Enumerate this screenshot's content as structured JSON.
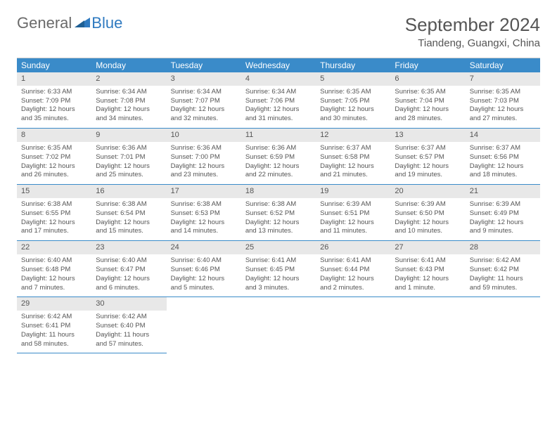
{
  "logo": {
    "text1": "General",
    "text2": "Blue"
  },
  "header": {
    "month": "September 2024",
    "location": "Tiandeng, Guangxi, China"
  },
  "colors": {
    "header_bg": "#3a8bc9",
    "header_fg": "#ffffff",
    "daynum_bg": "#e8e8e8",
    "text": "#555555",
    "border": "#3a8bc9",
    "logo_blue": "#2f7ac0"
  },
  "dayNames": [
    "Sunday",
    "Monday",
    "Tuesday",
    "Wednesday",
    "Thursday",
    "Friday",
    "Saturday"
  ],
  "days": [
    {
      "n": "1",
      "sunrise": "Sunrise: 6:33 AM",
      "sunset": "Sunset: 7:09 PM",
      "dl1": "Daylight: 12 hours",
      "dl2": "and 35 minutes."
    },
    {
      "n": "2",
      "sunrise": "Sunrise: 6:34 AM",
      "sunset": "Sunset: 7:08 PM",
      "dl1": "Daylight: 12 hours",
      "dl2": "and 34 minutes."
    },
    {
      "n": "3",
      "sunrise": "Sunrise: 6:34 AM",
      "sunset": "Sunset: 7:07 PM",
      "dl1": "Daylight: 12 hours",
      "dl2": "and 32 minutes."
    },
    {
      "n": "4",
      "sunrise": "Sunrise: 6:34 AM",
      "sunset": "Sunset: 7:06 PM",
      "dl1": "Daylight: 12 hours",
      "dl2": "and 31 minutes."
    },
    {
      "n": "5",
      "sunrise": "Sunrise: 6:35 AM",
      "sunset": "Sunset: 7:05 PM",
      "dl1": "Daylight: 12 hours",
      "dl2": "and 30 minutes."
    },
    {
      "n": "6",
      "sunrise": "Sunrise: 6:35 AM",
      "sunset": "Sunset: 7:04 PM",
      "dl1": "Daylight: 12 hours",
      "dl2": "and 28 minutes."
    },
    {
      "n": "7",
      "sunrise": "Sunrise: 6:35 AM",
      "sunset": "Sunset: 7:03 PM",
      "dl1": "Daylight: 12 hours",
      "dl2": "and 27 minutes."
    },
    {
      "n": "8",
      "sunrise": "Sunrise: 6:35 AM",
      "sunset": "Sunset: 7:02 PM",
      "dl1": "Daylight: 12 hours",
      "dl2": "and 26 minutes."
    },
    {
      "n": "9",
      "sunrise": "Sunrise: 6:36 AM",
      "sunset": "Sunset: 7:01 PM",
      "dl1": "Daylight: 12 hours",
      "dl2": "and 25 minutes."
    },
    {
      "n": "10",
      "sunrise": "Sunrise: 6:36 AM",
      "sunset": "Sunset: 7:00 PM",
      "dl1": "Daylight: 12 hours",
      "dl2": "and 23 minutes."
    },
    {
      "n": "11",
      "sunrise": "Sunrise: 6:36 AM",
      "sunset": "Sunset: 6:59 PM",
      "dl1": "Daylight: 12 hours",
      "dl2": "and 22 minutes."
    },
    {
      "n": "12",
      "sunrise": "Sunrise: 6:37 AM",
      "sunset": "Sunset: 6:58 PM",
      "dl1": "Daylight: 12 hours",
      "dl2": "and 21 minutes."
    },
    {
      "n": "13",
      "sunrise": "Sunrise: 6:37 AM",
      "sunset": "Sunset: 6:57 PM",
      "dl1": "Daylight: 12 hours",
      "dl2": "and 19 minutes."
    },
    {
      "n": "14",
      "sunrise": "Sunrise: 6:37 AM",
      "sunset": "Sunset: 6:56 PM",
      "dl1": "Daylight: 12 hours",
      "dl2": "and 18 minutes."
    },
    {
      "n": "15",
      "sunrise": "Sunrise: 6:38 AM",
      "sunset": "Sunset: 6:55 PM",
      "dl1": "Daylight: 12 hours",
      "dl2": "and 17 minutes."
    },
    {
      "n": "16",
      "sunrise": "Sunrise: 6:38 AM",
      "sunset": "Sunset: 6:54 PM",
      "dl1": "Daylight: 12 hours",
      "dl2": "and 15 minutes."
    },
    {
      "n": "17",
      "sunrise": "Sunrise: 6:38 AM",
      "sunset": "Sunset: 6:53 PM",
      "dl1": "Daylight: 12 hours",
      "dl2": "and 14 minutes."
    },
    {
      "n": "18",
      "sunrise": "Sunrise: 6:38 AM",
      "sunset": "Sunset: 6:52 PM",
      "dl1": "Daylight: 12 hours",
      "dl2": "and 13 minutes."
    },
    {
      "n": "19",
      "sunrise": "Sunrise: 6:39 AM",
      "sunset": "Sunset: 6:51 PM",
      "dl1": "Daylight: 12 hours",
      "dl2": "and 11 minutes."
    },
    {
      "n": "20",
      "sunrise": "Sunrise: 6:39 AM",
      "sunset": "Sunset: 6:50 PM",
      "dl1": "Daylight: 12 hours",
      "dl2": "and 10 minutes."
    },
    {
      "n": "21",
      "sunrise": "Sunrise: 6:39 AM",
      "sunset": "Sunset: 6:49 PM",
      "dl1": "Daylight: 12 hours",
      "dl2": "and 9 minutes."
    },
    {
      "n": "22",
      "sunrise": "Sunrise: 6:40 AM",
      "sunset": "Sunset: 6:48 PM",
      "dl1": "Daylight: 12 hours",
      "dl2": "and 7 minutes."
    },
    {
      "n": "23",
      "sunrise": "Sunrise: 6:40 AM",
      "sunset": "Sunset: 6:47 PM",
      "dl1": "Daylight: 12 hours",
      "dl2": "and 6 minutes."
    },
    {
      "n": "24",
      "sunrise": "Sunrise: 6:40 AM",
      "sunset": "Sunset: 6:46 PM",
      "dl1": "Daylight: 12 hours",
      "dl2": "and 5 minutes."
    },
    {
      "n": "25",
      "sunrise": "Sunrise: 6:41 AM",
      "sunset": "Sunset: 6:45 PM",
      "dl1": "Daylight: 12 hours",
      "dl2": "and 3 minutes."
    },
    {
      "n": "26",
      "sunrise": "Sunrise: 6:41 AM",
      "sunset": "Sunset: 6:44 PM",
      "dl1": "Daylight: 12 hours",
      "dl2": "and 2 minutes."
    },
    {
      "n": "27",
      "sunrise": "Sunrise: 6:41 AM",
      "sunset": "Sunset: 6:43 PM",
      "dl1": "Daylight: 12 hours",
      "dl2": "and 1 minute."
    },
    {
      "n": "28",
      "sunrise": "Sunrise: 6:42 AM",
      "sunset": "Sunset: 6:42 PM",
      "dl1": "Daylight: 11 hours",
      "dl2": "and 59 minutes."
    },
    {
      "n": "29",
      "sunrise": "Sunrise: 6:42 AM",
      "sunset": "Sunset: 6:41 PM",
      "dl1": "Daylight: 11 hours",
      "dl2": "and 58 minutes."
    },
    {
      "n": "30",
      "sunrise": "Sunrise: 6:42 AM",
      "sunset": "Sunset: 6:40 PM",
      "dl1": "Daylight: 11 hours",
      "dl2": "and 57 minutes."
    }
  ]
}
